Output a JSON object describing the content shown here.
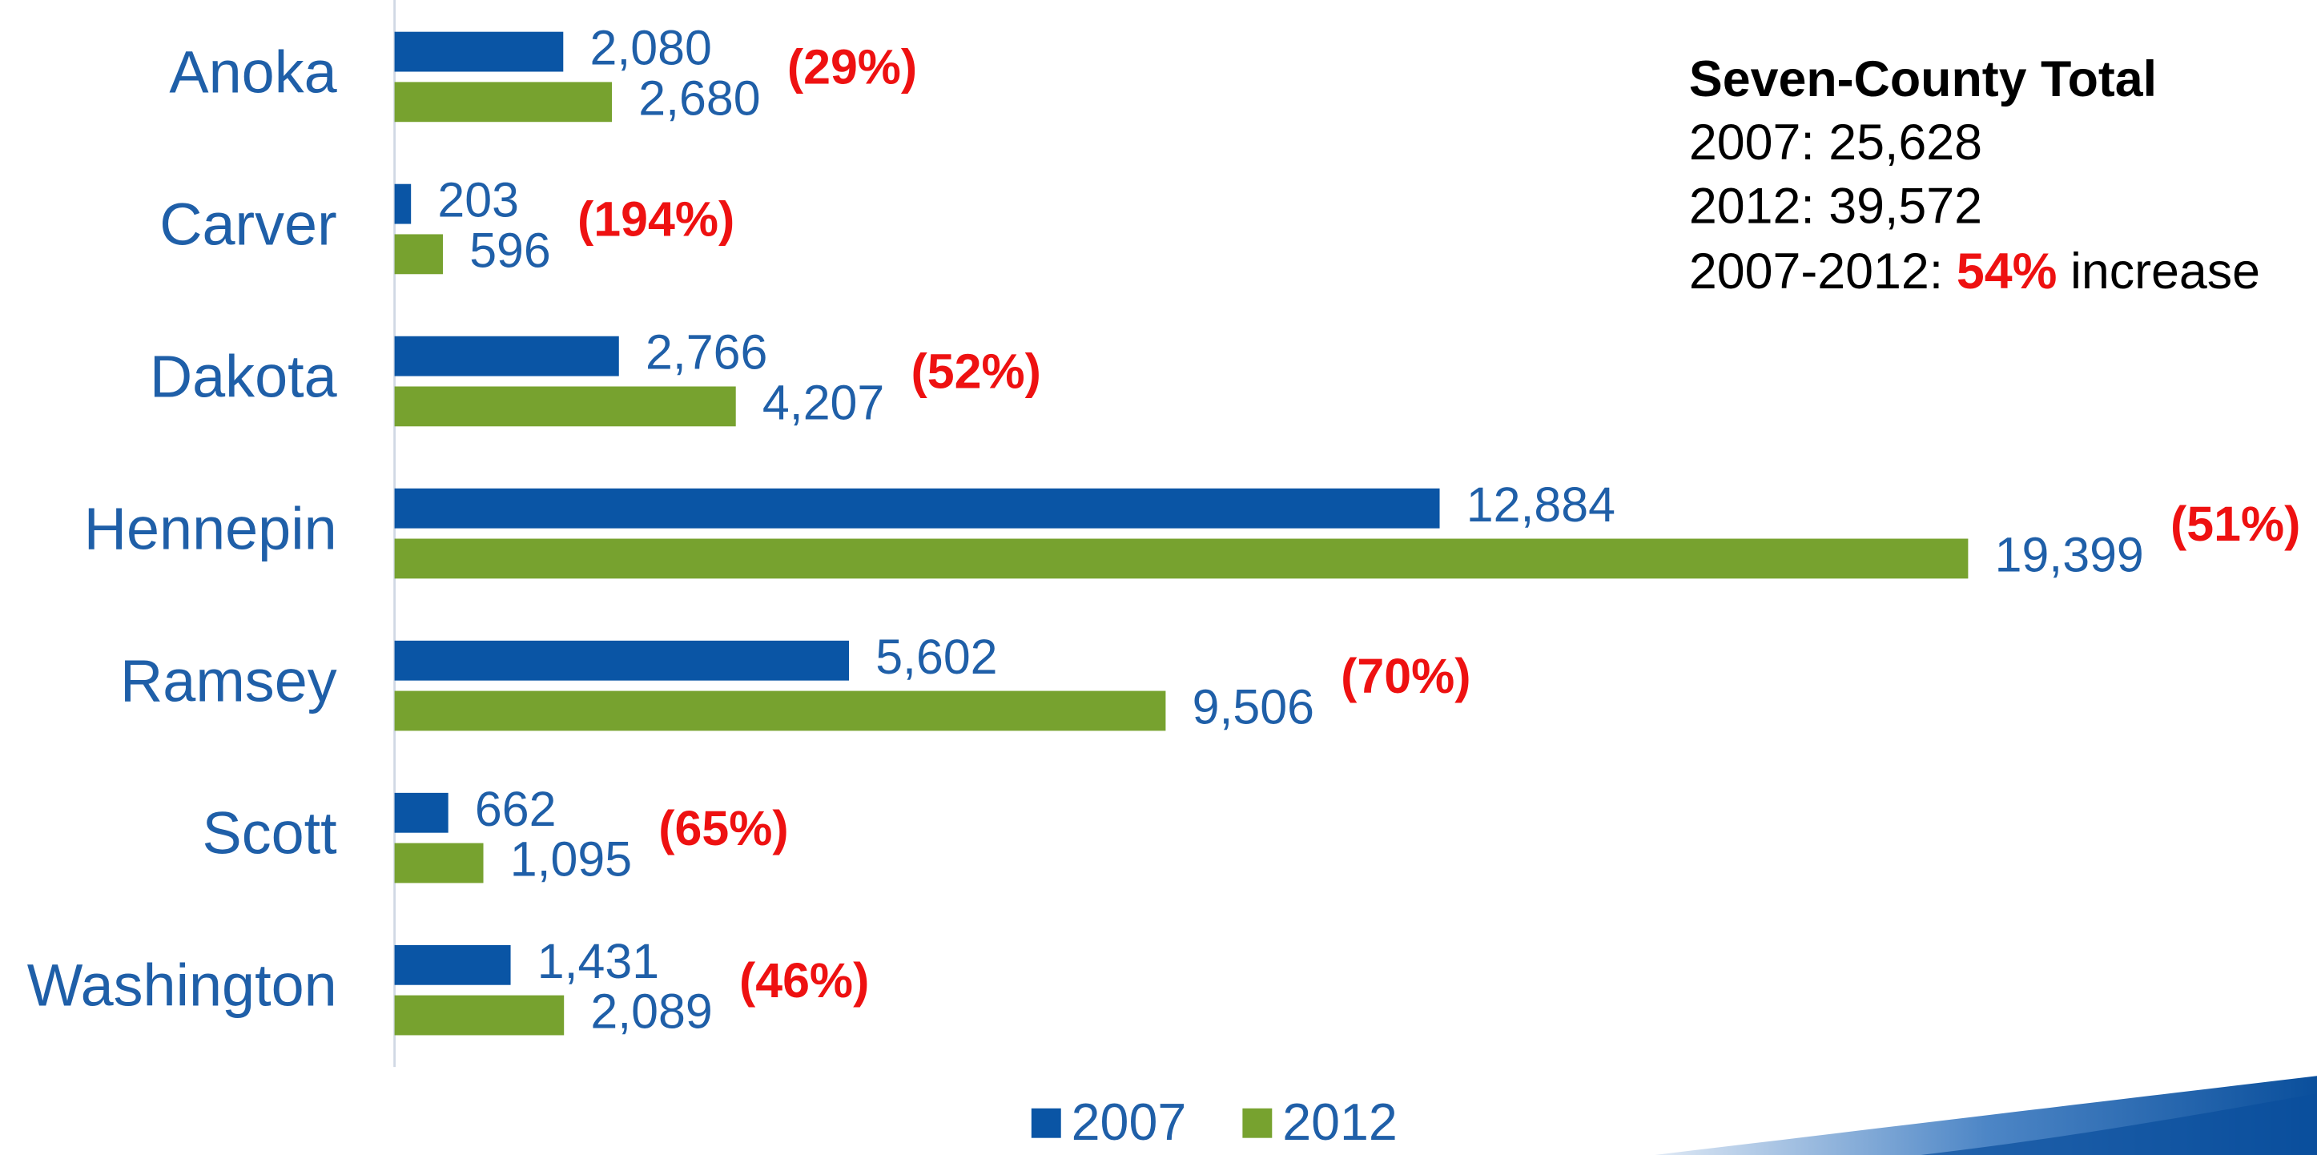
{
  "chart_data": {
    "type": "bar",
    "orientation": "horizontal",
    "categories": [
      "Anoka",
      "Carver",
      "Dakota",
      "Hennepin",
      "Ramsey",
      "Scott",
      "Washington"
    ],
    "series": [
      {
        "name": "2007",
        "color": "#0a55a5",
        "values": [
          2080,
          203,
          2766,
          12884,
          5602,
          662,
          1431
        ],
        "value_labels": [
          "2,080",
          "203",
          "2,766",
          "12,884",
          "5,602",
          "662",
          "1,431"
        ]
      },
      {
        "name": "2012",
        "color": "#77a22f",
        "values": [
          2680,
          596,
          4207,
          19399,
          9506,
          1095,
          2089
        ],
        "value_labels": [
          "2,680",
          "596",
          "4,207",
          "19,399",
          "9,506",
          "1,095",
          "2,089"
        ]
      }
    ],
    "percent_changes": [
      "(29%)",
      "(194%)",
      "(52%)",
      "(51%)",
      "(70%)",
      "(65%)",
      "(46%)"
    ],
    "xlim": [
      0,
      23700
    ],
    "summary": {
      "title": "Seven-County Total",
      "lines": [
        "2007: 25,628",
        "2012: 39,572"
      ],
      "change": [
        "2007-2012:",
        "54%",
        "increase"
      ]
    }
  }
}
